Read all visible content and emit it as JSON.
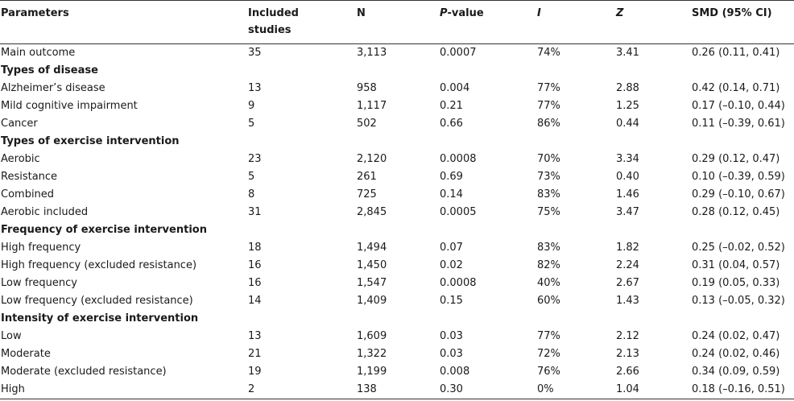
{
  "headers": {
    "parameters": "Parameters",
    "included_line1": "Included",
    "included_line2": "studies",
    "n": "N",
    "p_italic": "P",
    "p_rest": "-value",
    "i": "I",
    "z": "Z",
    "smd": "SMD (95% CI)"
  },
  "rows": [
    {
      "label": "Main outcome",
      "studies": "35",
      "n": "3,113",
      "p": "0.0007",
      "i": "74%",
      "z": "3.41",
      "smd": "0.26 (0.11, 0.41)"
    },
    {
      "section": "Types of disease"
    },
    {
      "label": "Alzheimer’s disease",
      "studies": "13",
      "n": "958",
      "p": "0.004",
      "i": "77%",
      "z": "2.88",
      "smd": "0.42 (0.14, 0.71)"
    },
    {
      "label": "Mild cognitive impairment",
      "studies": "9",
      "n": "1,117",
      "p": "0.21",
      "i": "77%",
      "z": "1.25",
      "smd": "0.17 (–0.10, 0.44)"
    },
    {
      "label": "Cancer",
      "studies": "5",
      "n": "502",
      "p": "0.66",
      "i": "86%",
      "z": "0.44",
      "smd": "0.11 (–0.39, 0.61)"
    },
    {
      "section": "Types of exercise intervention"
    },
    {
      "label": "Aerobic",
      "studies": "23",
      "n": "2,120",
      "p": "0.0008",
      "i": "70%",
      "z": "3.34",
      "smd": "0.29 (0.12, 0.47)"
    },
    {
      "label": "Resistance",
      "studies": "5",
      "n": "261",
      "p": "0.69",
      "i": "73%",
      "z": "0.40",
      "smd": "0.10 (–0.39, 0.59)"
    },
    {
      "label": "Combined",
      "studies": "8",
      "n": "725",
      "p": "0.14",
      "i": "83%",
      "z": "1.46",
      "smd": "0.29 (–0.10, 0.67)"
    },
    {
      "label": "Aerobic included",
      "studies": "31",
      "n": "2,845",
      "p": "0.0005",
      "i": "75%",
      "z": "3.47",
      "smd": "0.28 (0.12, 0.45)"
    },
    {
      "section": "Frequency of exercise intervention"
    },
    {
      "label": "High frequency",
      "studies": "18",
      "n": "1,494",
      "p": "0.07",
      "i": "83%",
      "z": "1.82",
      "smd": "0.25 (–0.02, 0.52)"
    },
    {
      "label": "High frequency (excluded resistance)",
      "studies": "16",
      "n": "1,450",
      "p": "0.02",
      "i": "82%",
      "z": "2.24",
      "smd": "0.31 (0.04, 0.57)"
    },
    {
      "label": "Low frequency",
      "studies": "16",
      "n": "1,547",
      "p": "0.0008",
      "i": "40%",
      "z": "2.67",
      "smd": "0.19 (0.05, 0.33)"
    },
    {
      "label": "Low frequency (excluded resistance)",
      "studies": "14",
      "n": "1,409",
      "p": "0.15",
      "i": "60%",
      "z": "1.43",
      "smd": "0.13 (–0.05, 0.32)"
    },
    {
      "section": "Intensity of exercise intervention"
    },
    {
      "label": "Low",
      "studies": "13",
      "n": "1,609",
      "p": "0.03",
      "i": "77%",
      "z": "2.12",
      "smd": "0.24 (0.02, 0.47)"
    },
    {
      "label": "Moderate",
      "studies": "21",
      "n": "1,322",
      "p": "0.03",
      "i": "72%",
      "z": "2.13",
      "smd": "0.24 (0.02, 0.46)"
    },
    {
      "label": "Moderate (excluded resistance)",
      "studies": "19",
      "n": "1,199",
      "p": "0.008",
      "i": "76%",
      "z": "2.66",
      "smd": "0.34 (0.09, 0.59)"
    },
    {
      "label": "High",
      "studies": "2",
      "n": "138",
      "p": "0.30",
      "i": "0%",
      "z": "1.04",
      "smd": "0.18 (–0.16, 0.51)"
    }
  ]
}
